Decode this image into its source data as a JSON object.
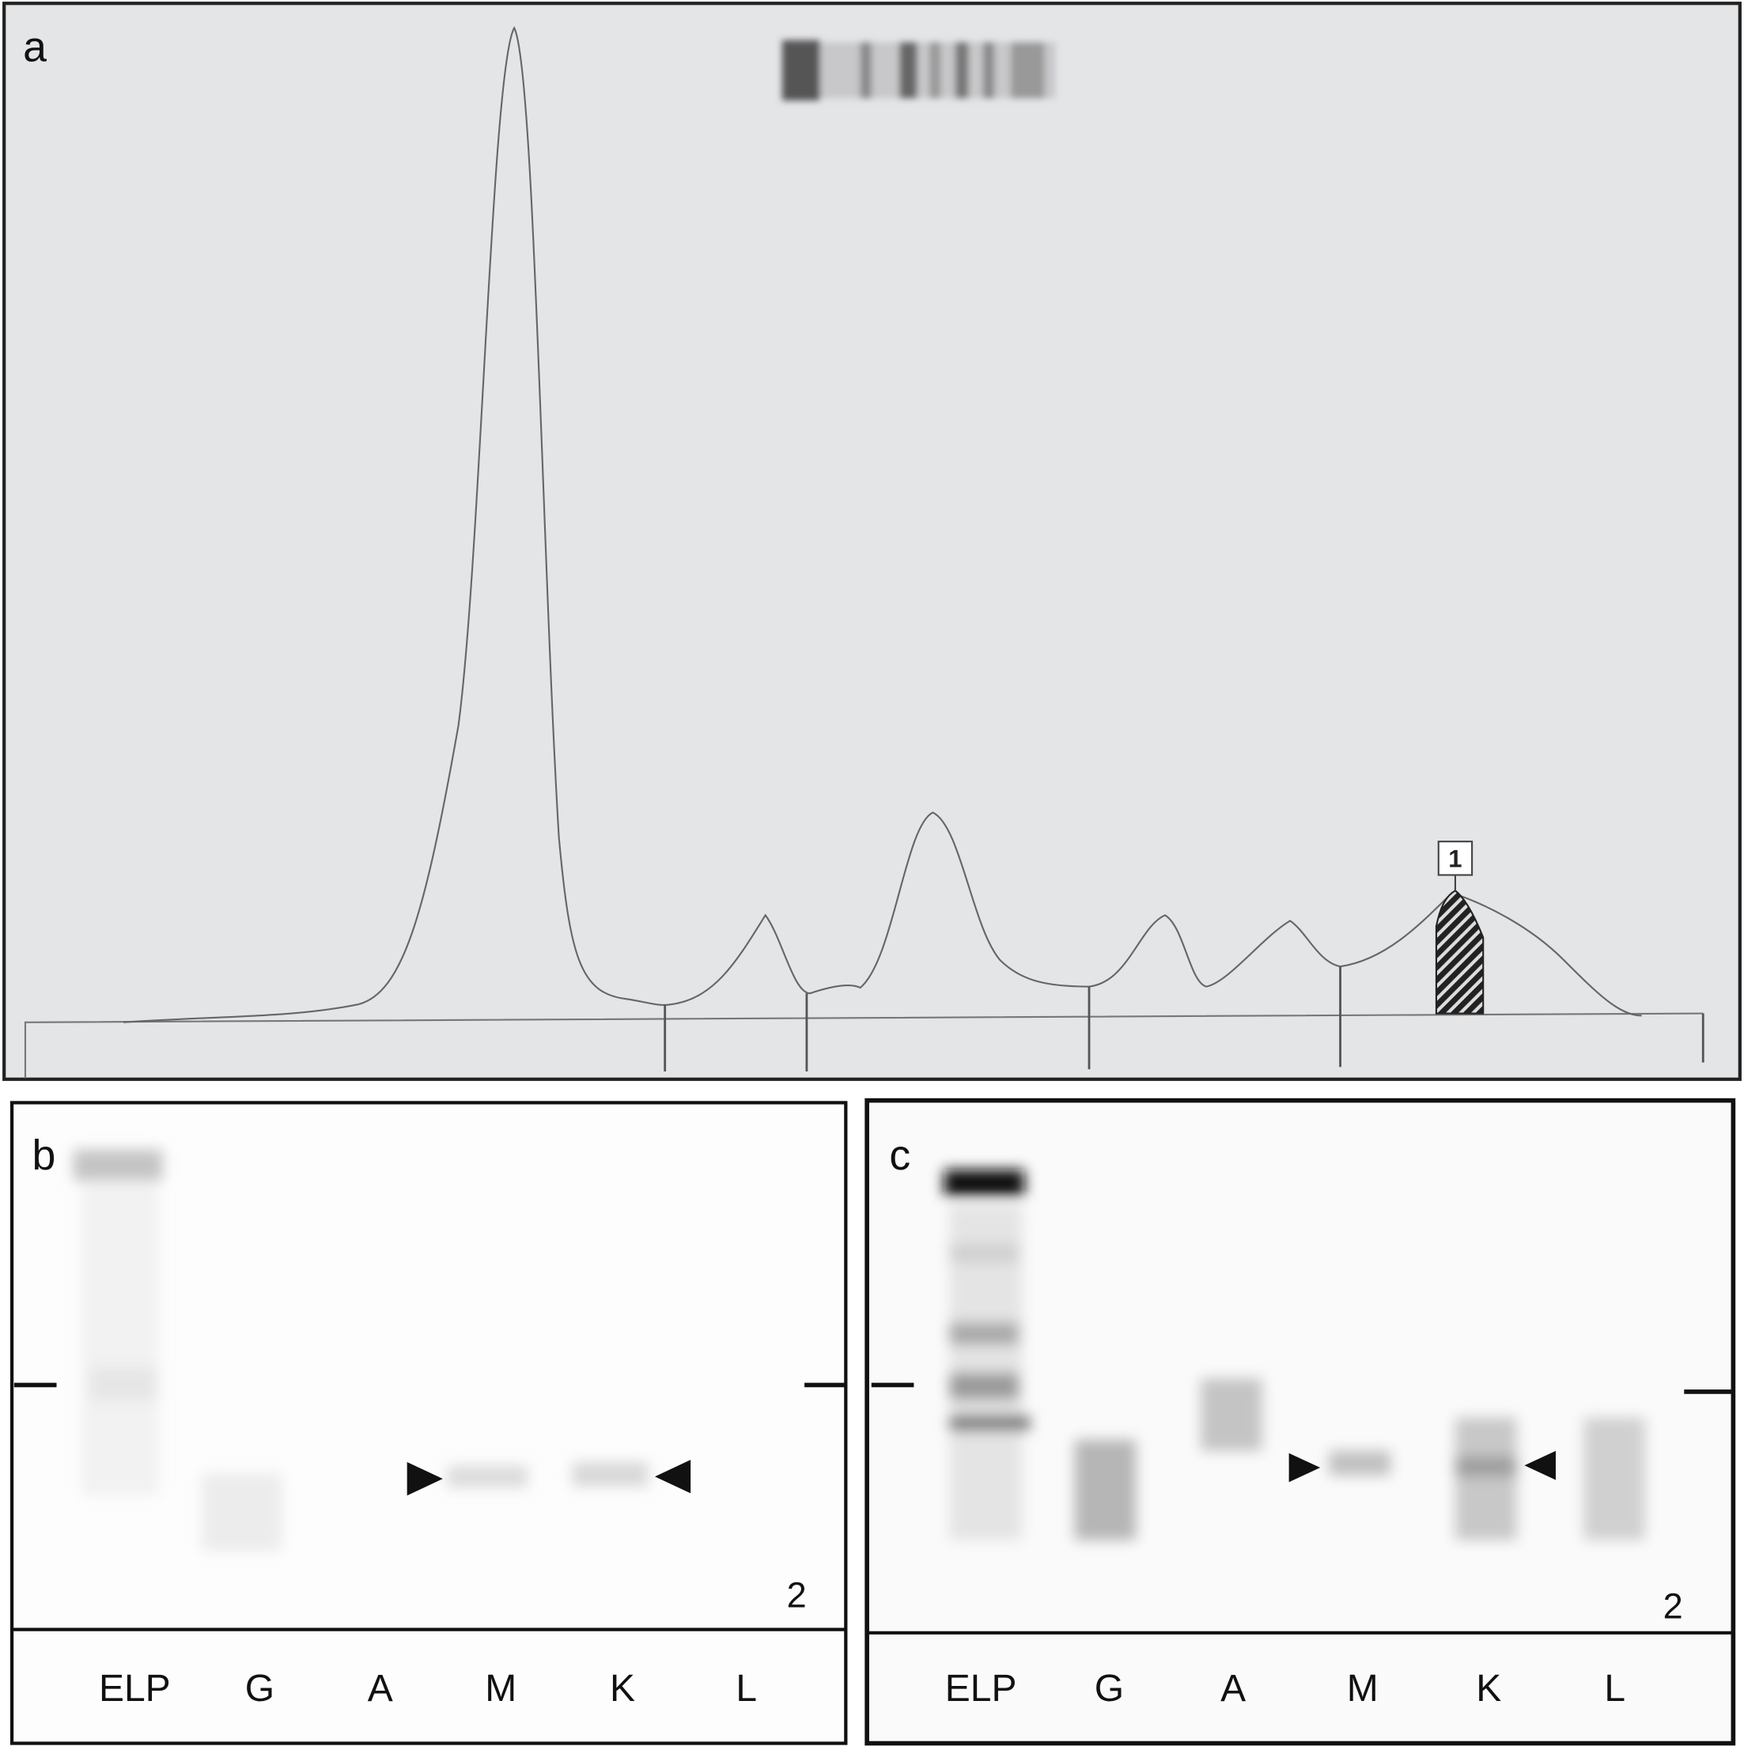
{
  "panels": [
    {
      "label": "a",
      "fraction_label": "1"
    },
    {
      "label": "b",
      "number": "2",
      "lanes": [
        "ELP",
        "G",
        "A",
        "M",
        "K",
        "L"
      ]
    },
    {
      "label": "c",
      "number": "2",
      "lanes": [
        "ELP",
        "G",
        "A",
        "M",
        "K",
        "L"
      ]
    }
  ]
}
